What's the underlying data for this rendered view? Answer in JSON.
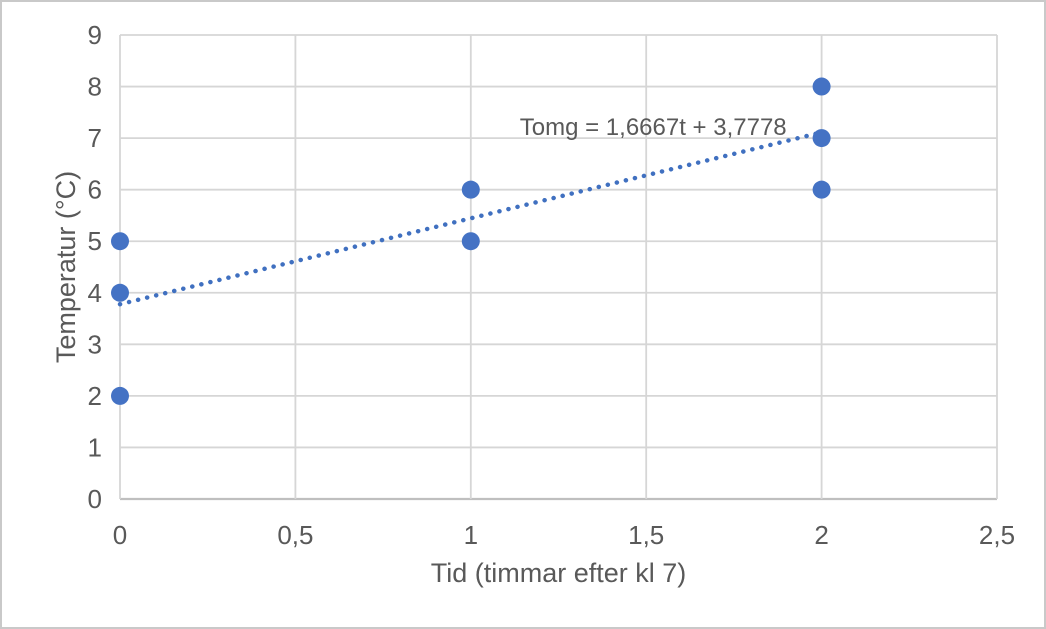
{
  "chart_data": {
    "type": "scatter",
    "title": "",
    "xlabel": "Tid (timmar efter kl 7)",
    "ylabel": "Temperatur (°C)",
    "xlim": [
      0,
      2.5
    ],
    "ylim": [
      0,
      9
    ],
    "x_ticks": [
      0,
      0.5,
      1,
      1.5,
      2,
      2.5
    ],
    "x_tick_labels": [
      "0",
      "0,5",
      "1",
      "1,5",
      "2",
      "2,5"
    ],
    "y_ticks": [
      0,
      1,
      2,
      3,
      4,
      5,
      6,
      7,
      8,
      9
    ],
    "y_tick_labels": [
      "0",
      "1",
      "2",
      "3",
      "4",
      "5",
      "6",
      "7",
      "8",
      "9"
    ],
    "grid": true,
    "legend": "none",
    "points": [
      {
        "x": 0,
        "y": 2
      },
      {
        "x": 0,
        "y": 4
      },
      {
        "x": 0,
        "y": 5
      },
      {
        "x": 1,
        "y": 5
      },
      {
        "x": 1,
        "y": 6
      },
      {
        "x": 2,
        "y": 6
      },
      {
        "x": 2,
        "y": 7
      },
      {
        "x": 2,
        "y": 8
      }
    ],
    "trendline": {
      "equation_label": "Tomg = 1,6667t + 3,7778",
      "slope": 1.6667,
      "intercept": 3.7778,
      "x_start": 0,
      "x_end": 2,
      "style": "dotted",
      "label_position": {
        "x": 1.52,
        "y": 7.06
      }
    },
    "colors": {
      "point": "#4472c4",
      "trendline": "#4070c0",
      "gridline": "#d6d6d6",
      "axis_line": "#bfbfbf",
      "tick_text": "#595959",
      "axis_title_text": "#595959",
      "equation_text": "#595959",
      "background": "#ffffff"
    },
    "font_sizes": {
      "tick": 26,
      "axis_title": 27,
      "equation": 24
    }
  }
}
